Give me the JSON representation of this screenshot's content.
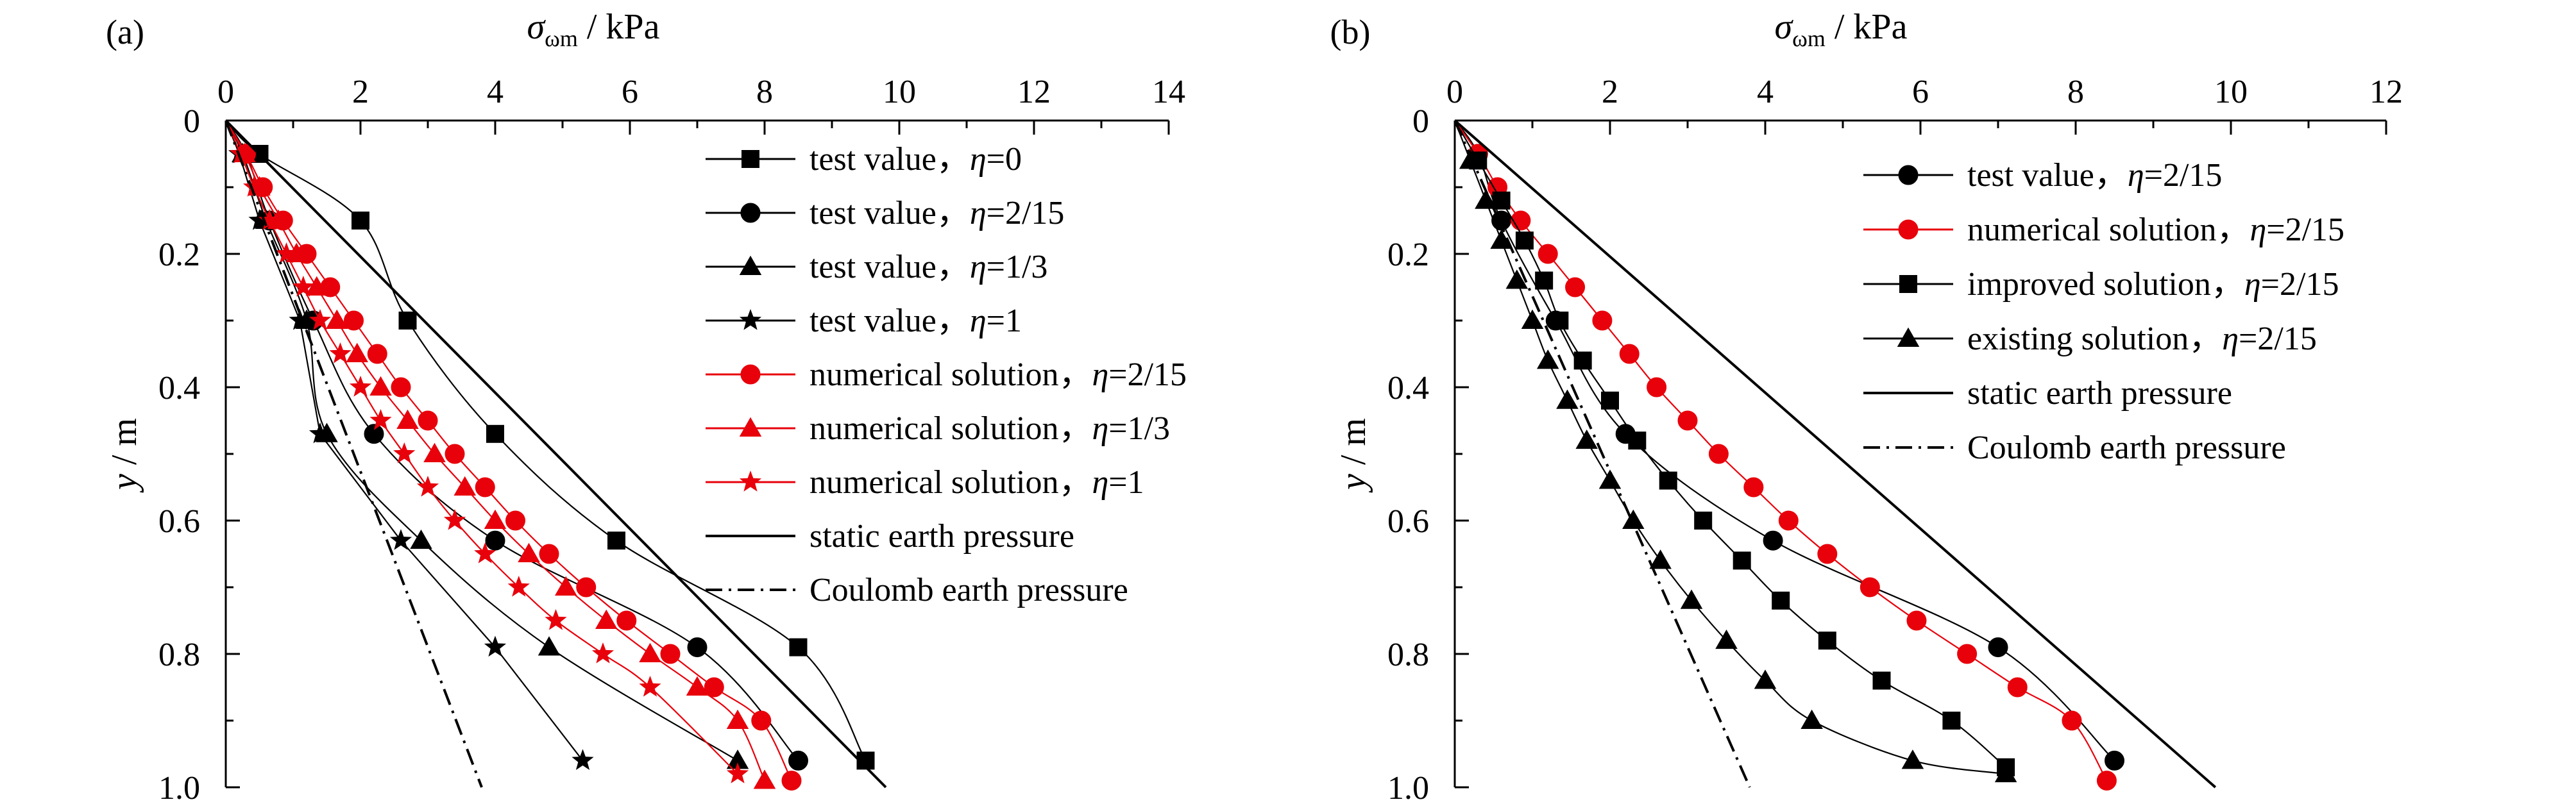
{
  "chart_data": [
    {
      "type": "line",
      "panel_label": "(a)",
      "xlabel": "σωm / kPa",
      "ylabel": "y / m",
      "xlim": [
        0,
        14
      ],
      "ylim": [
        0,
        1.0
      ],
      "x_ticks": [
        "0",
        "2",
        "4",
        "6",
        "8",
        "10",
        "12",
        "14"
      ],
      "y_ticks": [
        "0",
        "0.2",
        "0.4",
        "0.6",
        "0.8",
        "1.0"
      ],
      "y_inverted": true,
      "x_axis_position": "top",
      "grid": false,
      "legend_position": "right",
      "series": [
        {
          "name": "test value，η=0",
          "color": "#000000",
          "marker": "square",
          "smooth": true,
          "x": [
            0,
            0.5,
            2.0,
            2.7,
            4.0,
            5.8,
            8.5,
            9.5
          ],
          "y": [
            0,
            0.05,
            0.15,
            0.3,
            0.47,
            0.63,
            0.79,
            0.96
          ]
        },
        {
          "name": "test value，η=2/15",
          "color": "#000000",
          "marker": "circle",
          "smooth": true,
          "x": [
            0,
            0.3,
            0.65,
            1.3,
            2.2,
            4.0,
            7.0,
            8.5
          ],
          "y": [
            0,
            0.05,
            0.15,
            0.3,
            0.47,
            0.63,
            0.79,
            0.96
          ]
        },
        {
          "name": "test value，η=1/3",
          "color": "#000000",
          "marker": "triangle",
          "smooth": true,
          "x": [
            0,
            0.25,
            0.6,
            1.2,
            1.5,
            2.9,
            4.8,
            7.6
          ],
          "y": [
            0,
            0.05,
            0.15,
            0.3,
            0.47,
            0.63,
            0.79,
            0.96
          ]
        },
        {
          "name": "test value，η=1",
          "color": "#000000",
          "marker": "star",
          "smooth": false,
          "x": [
            0,
            0.2,
            0.5,
            1.1,
            1.4,
            2.6,
            4.0,
            5.3
          ],
          "y": [
            0,
            0.05,
            0.15,
            0.3,
            0.47,
            0.63,
            0.79,
            0.96
          ]
        },
        {
          "name": "numerical solution，η=2/15",
          "color": "#e8000b",
          "marker": "circle",
          "smooth": true,
          "x": [
            0,
            0.3,
            0.55,
            0.85,
            1.2,
            1.55,
            1.9,
            2.25,
            2.6,
            3.0,
            3.4,
            3.85,
            4.3,
            4.8,
            5.35,
            5.95,
            6.6,
            7.25,
            7.95,
            8.4
          ],
          "y": [
            0,
            0.05,
            0.1,
            0.15,
            0.2,
            0.25,
            0.3,
            0.35,
            0.4,
            0.45,
            0.5,
            0.55,
            0.6,
            0.65,
            0.7,
            0.75,
            0.8,
            0.85,
            0.9,
            0.99
          ]
        },
        {
          "name": "numerical solution，η=1/3",
          "color": "#e8000b",
          "marker": "triangle",
          "smooth": true,
          "x": [
            0,
            0.28,
            0.5,
            0.78,
            1.05,
            1.35,
            1.65,
            1.95,
            2.3,
            2.7,
            3.1,
            3.55,
            4.0,
            4.5,
            5.05,
            5.65,
            6.3,
            7.0,
            7.6,
            8.0
          ],
          "y": [
            0,
            0.05,
            0.1,
            0.15,
            0.2,
            0.25,
            0.3,
            0.35,
            0.4,
            0.45,
            0.5,
            0.55,
            0.6,
            0.65,
            0.7,
            0.75,
            0.8,
            0.85,
            0.9,
            0.99
          ]
        },
        {
          "name": "numerical solution，η=1",
          "color": "#e8000b",
          "marker": "star",
          "smooth": true,
          "x": [
            0,
            0.22,
            0.42,
            0.65,
            0.9,
            1.15,
            1.4,
            1.7,
            2.0,
            2.3,
            2.65,
            3.0,
            3.4,
            3.85,
            4.35,
            4.9,
            5.6,
            6.3,
            7.6
          ],
          "y": [
            0,
            0.05,
            0.1,
            0.15,
            0.2,
            0.25,
            0.3,
            0.35,
            0.4,
            0.45,
            0.5,
            0.55,
            0.6,
            0.65,
            0.7,
            0.75,
            0.8,
            0.85,
            0.98
          ]
        },
        {
          "name": "static earth pressure",
          "color": "#000000",
          "marker": "none",
          "style": "solid",
          "x": [
            0,
            9.8
          ],
          "y": [
            0,
            1.0
          ]
        },
        {
          "name": "Coulomb earth pressure",
          "color": "#000000",
          "marker": "none",
          "style": "dashdot",
          "x": [
            0,
            3.8
          ],
          "y": [
            0,
            1.0
          ]
        }
      ]
    },
    {
      "type": "line",
      "panel_label": "(b)",
      "xlabel": "σωm / kPa",
      "ylabel": "y / m",
      "xlim": [
        0,
        12
      ],
      "ylim": [
        0,
        1.0
      ],
      "x_ticks": [
        "0",
        "2",
        "4",
        "6",
        "8",
        "10",
        "12"
      ],
      "y_ticks": [
        "0",
        "0.2",
        "0.4",
        "0.6",
        "0.8",
        "1.0"
      ],
      "y_inverted": true,
      "x_axis_position": "top",
      "grid": false,
      "legend_position": "right",
      "series": [
        {
          "name": "test value，η=2/15",
          "color": "#000000",
          "marker": "circle",
          "smooth": true,
          "x": [
            0,
            0.3,
            0.6,
            1.3,
            2.2,
            4.1,
            7.0,
            8.5
          ],
          "y": [
            0,
            0.05,
            0.15,
            0.3,
            0.47,
            0.63,
            0.79,
            0.96
          ]
        },
        {
          "name": "numerical solution，η=2/15",
          "color": "#e8000b",
          "marker": "circle",
          "smooth": true,
          "x": [
            0,
            0.3,
            0.55,
            0.85,
            1.2,
            1.55,
            1.9,
            2.25,
            2.6,
            3.0,
            3.4,
            3.85,
            4.3,
            4.8,
            5.35,
            5.95,
            6.6,
            7.25,
            7.95,
            8.4
          ],
          "y": [
            0,
            0.05,
            0.1,
            0.15,
            0.2,
            0.25,
            0.3,
            0.35,
            0.4,
            0.45,
            0.5,
            0.55,
            0.6,
            0.65,
            0.7,
            0.75,
            0.8,
            0.85,
            0.9,
            0.99
          ]
        },
        {
          "name": "improved solution，η=2/15",
          "color": "#000000",
          "marker": "square",
          "smooth": true,
          "x": [
            0,
            0.3,
            0.6,
            0.9,
            1.15,
            1.35,
            1.65,
            2.0,
            2.35,
            2.75,
            3.2,
            3.7,
            4.2,
            4.8,
            5.5,
            6.4,
            7.1
          ],
          "y": [
            0,
            0.06,
            0.12,
            0.18,
            0.24,
            0.3,
            0.36,
            0.42,
            0.48,
            0.54,
            0.6,
            0.66,
            0.72,
            0.78,
            0.84,
            0.9,
            0.97
          ]
        },
        {
          "name": "existing solution，η=2/15",
          "color": "#000000",
          "marker": "triangle",
          "smooth": true,
          "x": [
            0,
            0.2,
            0.4,
            0.6,
            0.8,
            1.0,
            1.2,
            1.45,
            1.7,
            2.0,
            2.3,
            2.65,
            3.05,
            3.5,
            4.0,
            4.6,
            5.9,
            7.1
          ],
          "y": [
            0,
            0.06,
            0.12,
            0.18,
            0.24,
            0.3,
            0.36,
            0.42,
            0.48,
            0.54,
            0.6,
            0.66,
            0.72,
            0.78,
            0.84,
            0.9,
            0.96,
            0.98
          ]
        },
        {
          "name": "static earth pressure",
          "color": "#000000",
          "marker": "none",
          "style": "solid",
          "x": [
            0,
            9.8
          ],
          "y": [
            0,
            1.0
          ]
        },
        {
          "name": "Coulomb earth pressure",
          "color": "#000000",
          "marker": "none",
          "style": "dashdot",
          "x": [
            0,
            3.8
          ],
          "y": [
            0,
            1.0
          ]
        }
      ]
    }
  ]
}
